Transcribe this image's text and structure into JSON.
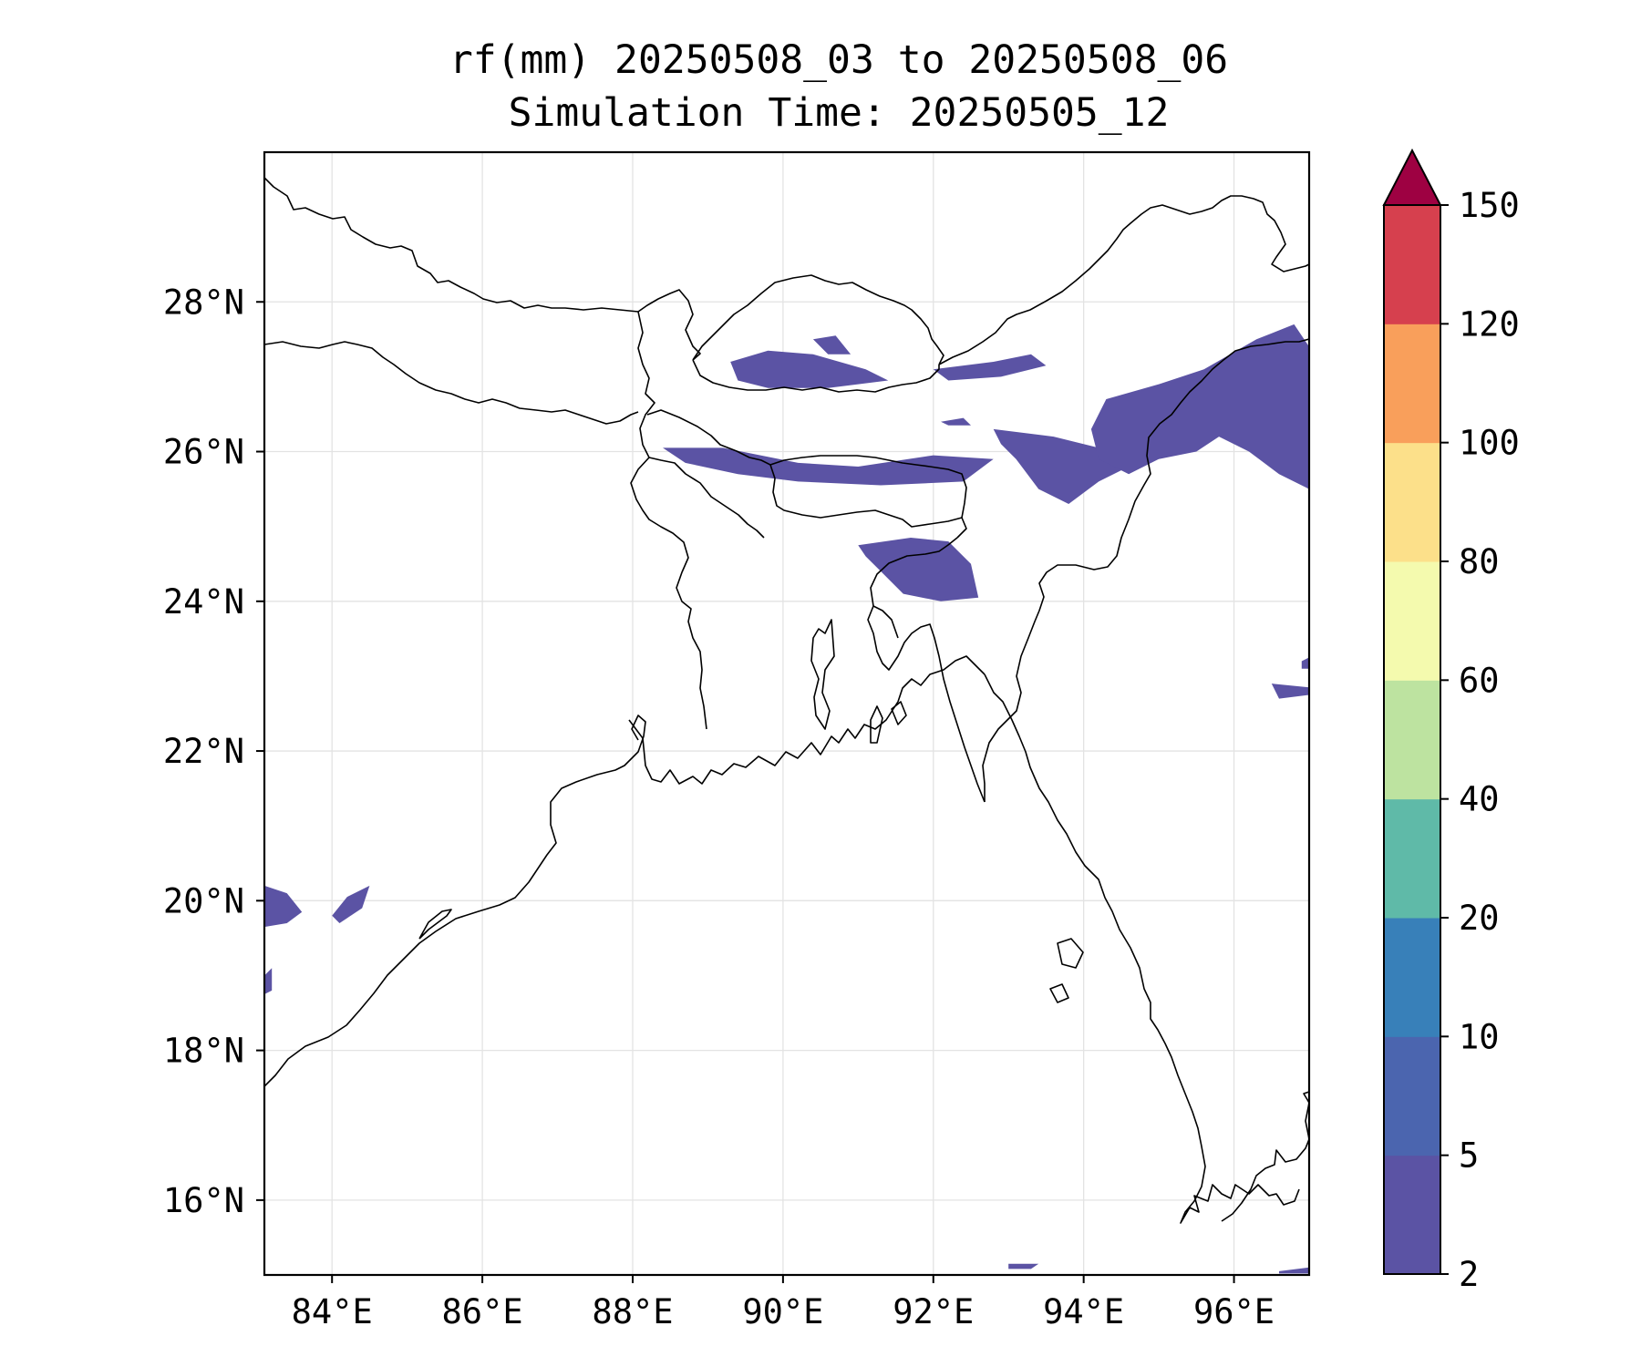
{
  "title": {
    "line1": "rf(mm) 20250508_03 to 20250508_06",
    "line2": "Simulation Time: 20250505_12"
  },
  "map": {
    "lon_range": [
      83.1,
      97.0
    ],
    "lat_range": [
      15.0,
      30.0
    ],
    "lon_ticks": [
      {
        "value": 84,
        "label": "84°E"
      },
      {
        "value": 86,
        "label": "86°E"
      },
      {
        "value": 88,
        "label": "88°E"
      },
      {
        "value": 90,
        "label": "90°E"
      },
      {
        "value": 92,
        "label": "92°E"
      },
      {
        "value": 94,
        "label": "94°E"
      },
      {
        "value": 96,
        "label": "96°E"
      }
    ],
    "lat_ticks": [
      {
        "value": 16,
        "label": "16°N"
      },
      {
        "value": 18,
        "label": "18°N"
      },
      {
        "value": 20,
        "label": "20°N"
      },
      {
        "value": 22,
        "label": "22°N"
      },
      {
        "value": 24,
        "label": "24°N"
      },
      {
        "value": 26,
        "label": "26°N"
      },
      {
        "value": 28,
        "label": "28°N"
      }
    ],
    "grid": true,
    "rain_color": "#5b53a4",
    "coast_color": "#000000"
  },
  "colorbar": {
    "levels": [
      "2",
      "5",
      "10",
      "20",
      "40",
      "60",
      "80",
      "100",
      "120",
      "150"
    ],
    "colors": [
      "#5b53a4",
      "#4b65af",
      "#3880b9",
      "#5fbaa8",
      "#bde3a0",
      "#f4faae",
      "#fce08a",
      "#f99f5b",
      "#d6404e"
    ],
    "extend_color": "#9e0142",
    "extend": "max"
  }
}
